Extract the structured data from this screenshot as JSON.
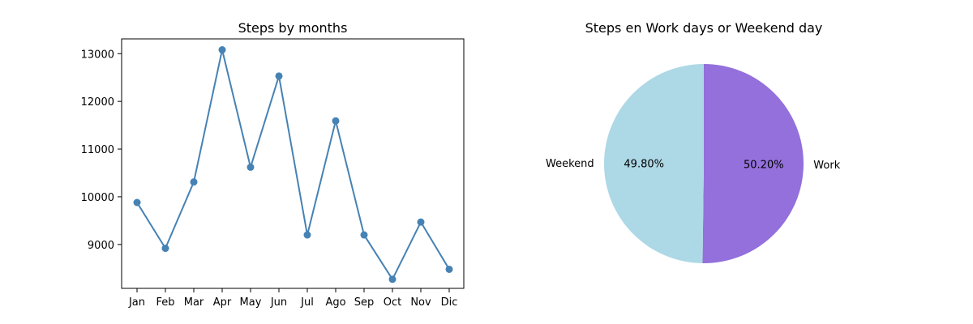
{
  "chart_data": [
    {
      "type": "line",
      "title": "Steps by months",
      "xlabel": "",
      "ylabel": "",
      "categories": [
        "Jan",
        "Feb",
        "Mar",
        "Apr",
        "May",
        "Jun",
        "Jul",
        "Ago",
        "Sep",
        "Oct",
        "Nov",
        "Dic"
      ],
      "values": [
        9880,
        8920,
        10310,
        13080,
        10620,
        12530,
        9200,
        11590,
        9200,
        8270,
        9470,
        8480
      ],
      "ylim": [
        8080,
        13310
      ],
      "yticks": [
        9000,
        10000,
        11000,
        12000,
        13000
      ],
      "grid": false,
      "color": "#4682b4",
      "marker": "circle"
    },
    {
      "type": "pie",
      "title": "Steps en Work days or Weekend day",
      "labels": [
        "Work",
        "Weekend"
      ],
      "values": [
        50.2,
        49.8
      ],
      "value_labels": [
        "50.20%",
        "49.80%"
      ],
      "colors": [
        "#9370db",
        "#add8e6"
      ],
      "startangle": 90,
      "direction": "clockwise"
    }
  ]
}
